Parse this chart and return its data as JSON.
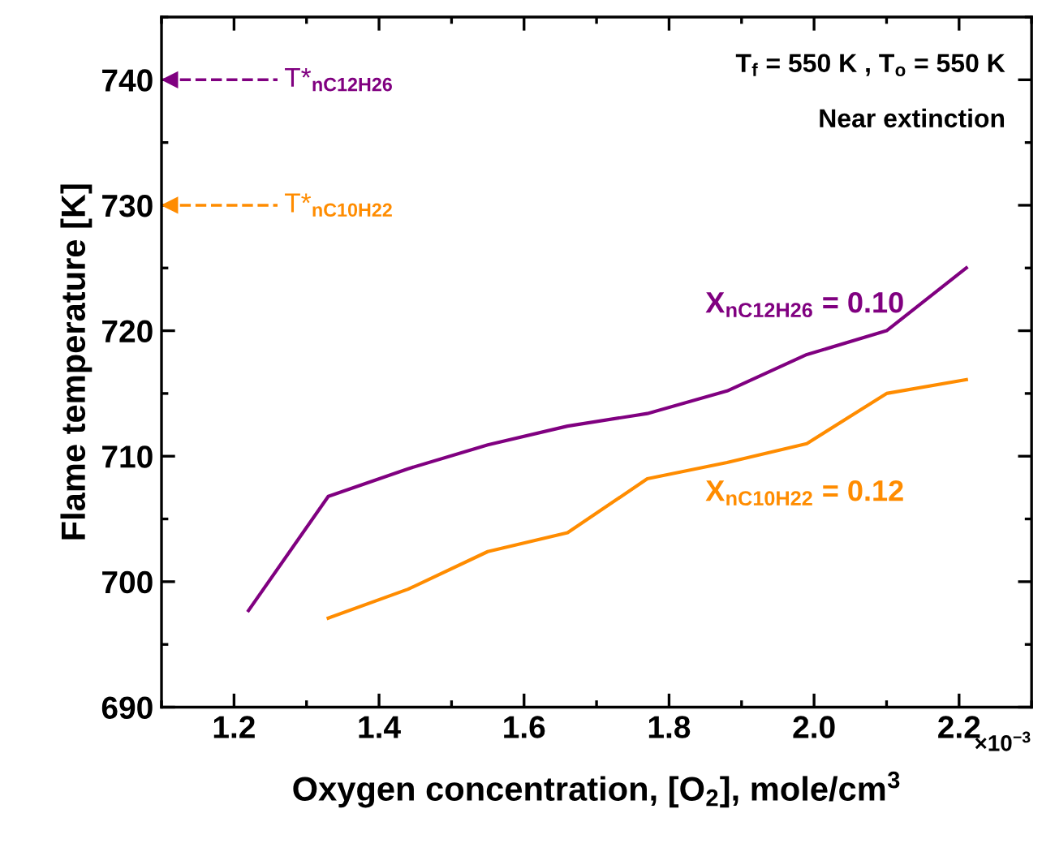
{
  "chart_data": {
    "type": "line",
    "xlabel": "Oxygen concentration, [O$_{2}$], mole/cm$^{3}$",
    "ylabel": "Flame temperature [K]",
    "x": [
      1.22,
      1.33,
      1.44,
      1.55,
      1.66,
      1.77,
      1.88,
      1.99,
      2.1,
      2.21
    ],
    "series": [
      {
        "name": "X$_{nC12H26}$ = 0.10",
        "color": "#800080",
        "values": [
          697.7,
          706.8,
          709.0,
          710.9,
          712.4,
          713.4,
          715.2,
          718.1,
          720.0,
          725.0
        ]
      },
      {
        "name": "X$_{nC10H22}$ = 0.12",
        "color": "#ff8c00",
        "values": [
          null,
          697.1,
          699.4,
          702.4,
          703.9,
          708.2,
          709.5,
          711.0,
          715.0,
          716.1
        ]
      }
    ],
    "xlim": [
      1.1,
      2.3
    ],
    "xticks": [
      1.2,
      1.4,
      1.6,
      1.8,
      {
        "value": 2.0,
        "label": "2.0"
      },
      2.2
    ],
    "ylim": [
      690,
      745
    ],
    "yticks": [
      690,
      700,
      710,
      720,
      730,
      740
    ],
    "grid": false,
    "marker": "none",
    "line_style": "solid",
    "ref_lines": [
      {
        "axis": "y",
        "value": 740,
        "label": "T*$_{nC12H26}$",
        "color": "#800080",
        "line_style": "dashed"
      },
      {
        "axis": "y",
        "value": 730,
        "label": "T*$_{nC10H22}$",
        "color": "#ff8c00",
        "line_style": "dashed"
      }
    ],
    "annotations": [
      "T$_{f}$ = 550 K , T$_{o}$ = 550 K",
      "Near extinction",
      "×10$^{−3}$"
    ]
  }
}
